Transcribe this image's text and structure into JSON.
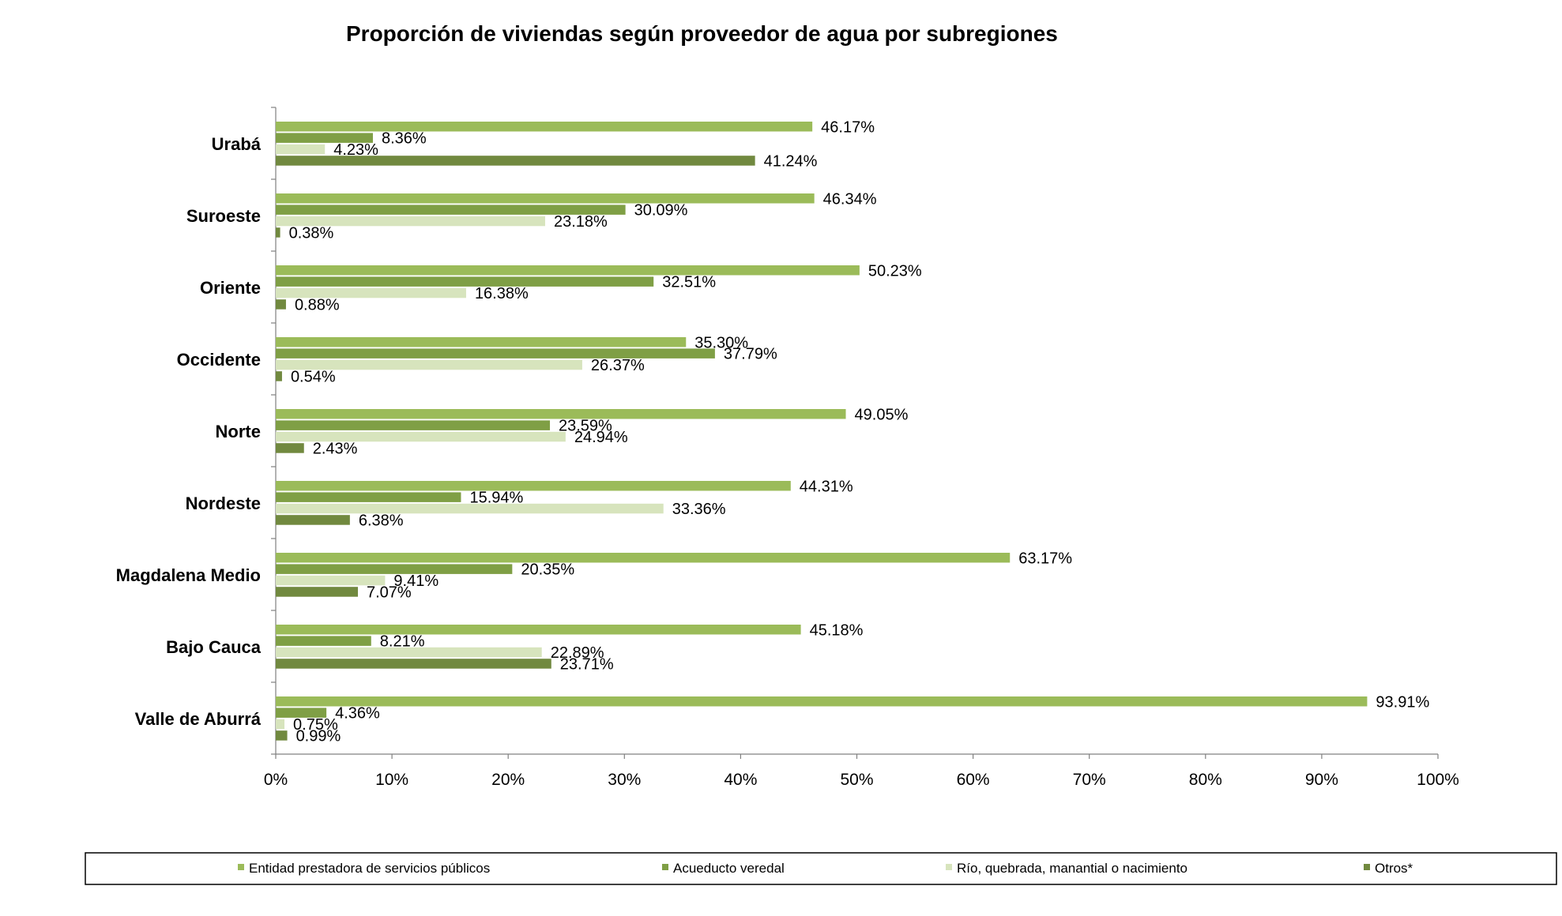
{
  "chart_data": {
    "type": "bar",
    "orientation": "horizontal",
    "title": "Proporción de viviendas según proveedor de agua por subregiones",
    "categories": [
      "Urabá",
      "Suroeste",
      "Oriente",
      "Occidente",
      "Norte",
      "Nordeste",
      "Magdalena Medio",
      "Bajo Cauca",
      "Valle de Aburrá"
    ],
    "series": [
      {
        "name": "Entidad prestadora de servicios públicos",
        "color": "#9bbb59",
        "values": [
          46.17,
          46.34,
          50.23,
          35.3,
          49.05,
          44.31,
          63.17,
          45.18,
          93.91
        ],
        "labels": [
          "46.17%",
          "46.34%",
          "50.23%",
          "35.30%",
          "49.05%",
          "44.31%",
          "63.17%",
          "45.18%",
          "93.91%"
        ]
      },
      {
        "name": "Acueducto veredal",
        "color": "#7f9f45",
        "values": [
          8.36,
          30.09,
          32.51,
          37.79,
          23.59,
          15.94,
          20.35,
          8.21,
          4.36
        ],
        "labels": [
          "8.36%",
          "30.09%",
          "32.51%",
          "37.79%",
          "23.59%",
          "15.94%",
          "20.35%",
          "8.21%",
          "4.36%"
        ]
      },
      {
        "name": "Río, quebrada, manantial o nacimiento",
        "color": "#d7e4bd",
        "values": [
          4.23,
          23.18,
          16.38,
          26.37,
          24.94,
          33.36,
          9.41,
          22.89,
          0.75
        ],
        "labels": [
          "4.23%",
          "23.18%",
          "16.38%",
          "26.37%",
          "24.94%",
          "33.36%",
          "9.41%",
          "22.89%",
          "0.75%"
        ]
      },
      {
        "name": "Otros*",
        "color": "#71893f",
        "values": [
          41.24,
          0.38,
          0.88,
          0.54,
          2.43,
          6.38,
          7.07,
          23.71,
          0.99
        ],
        "labels": [
          "41.24%",
          "0.38%",
          "0.88%",
          "0.54%",
          "2.43%",
          "6.38%",
          "7.07%",
          "23.71%",
          "0.99%"
        ]
      }
    ],
    "xlim": [
      0,
      100
    ],
    "xticks": [
      "0%",
      "10%",
      "20%",
      "30%",
      "40%",
      "50%",
      "60%",
      "70%",
      "80%",
      "90%",
      "100%"
    ],
    "grid": false,
    "legend_position": "bottom"
  }
}
